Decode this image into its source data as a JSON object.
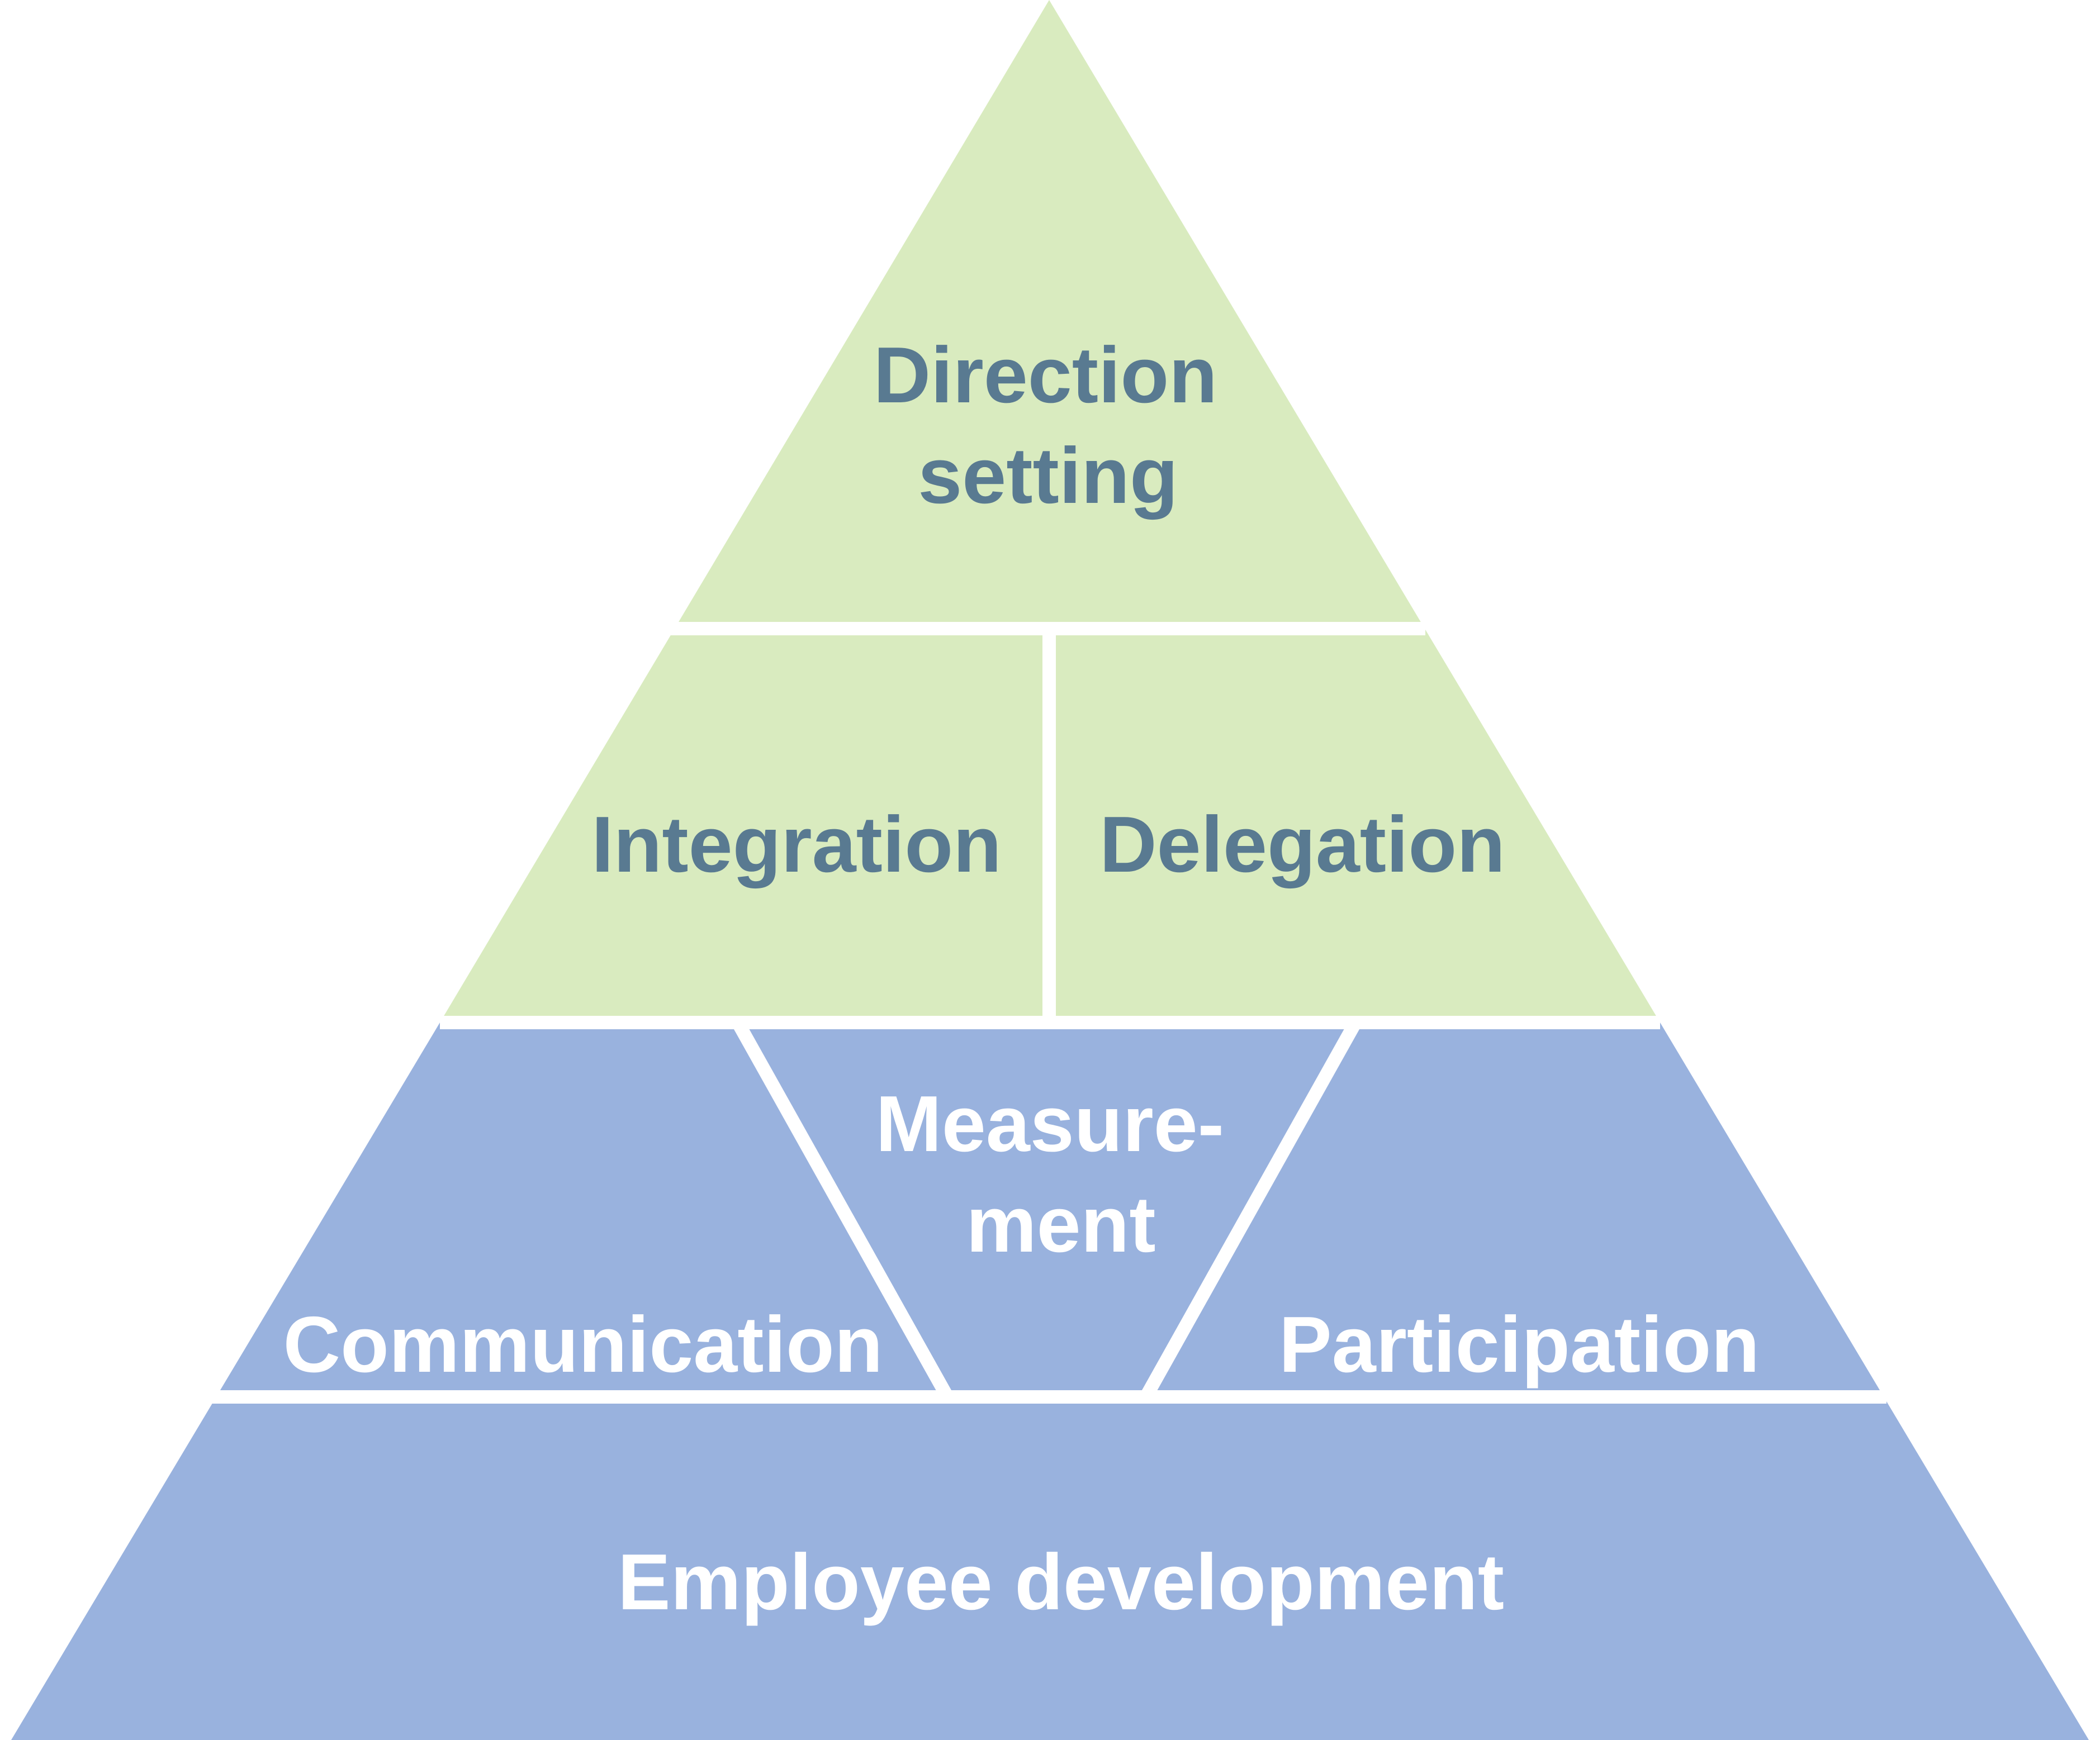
{
  "colors": {
    "top_tier": "#d9ebbf",
    "bottom_tier": "#99b2de",
    "top_text": "#597a91",
    "bottom_text": "#ffffff",
    "separator": "#ffffff"
  },
  "pyramid": {
    "top": {
      "direction_setting": [
        "Direction",
        "setting"
      ]
    },
    "middle": {
      "integration": "Integration",
      "delegation": "Delegation"
    },
    "lower": {
      "communication": "Communication",
      "measurement": [
        "Measure-",
        "ment"
      ],
      "participation": "Participation"
    },
    "base": {
      "employee_development": "Employee development"
    }
  }
}
